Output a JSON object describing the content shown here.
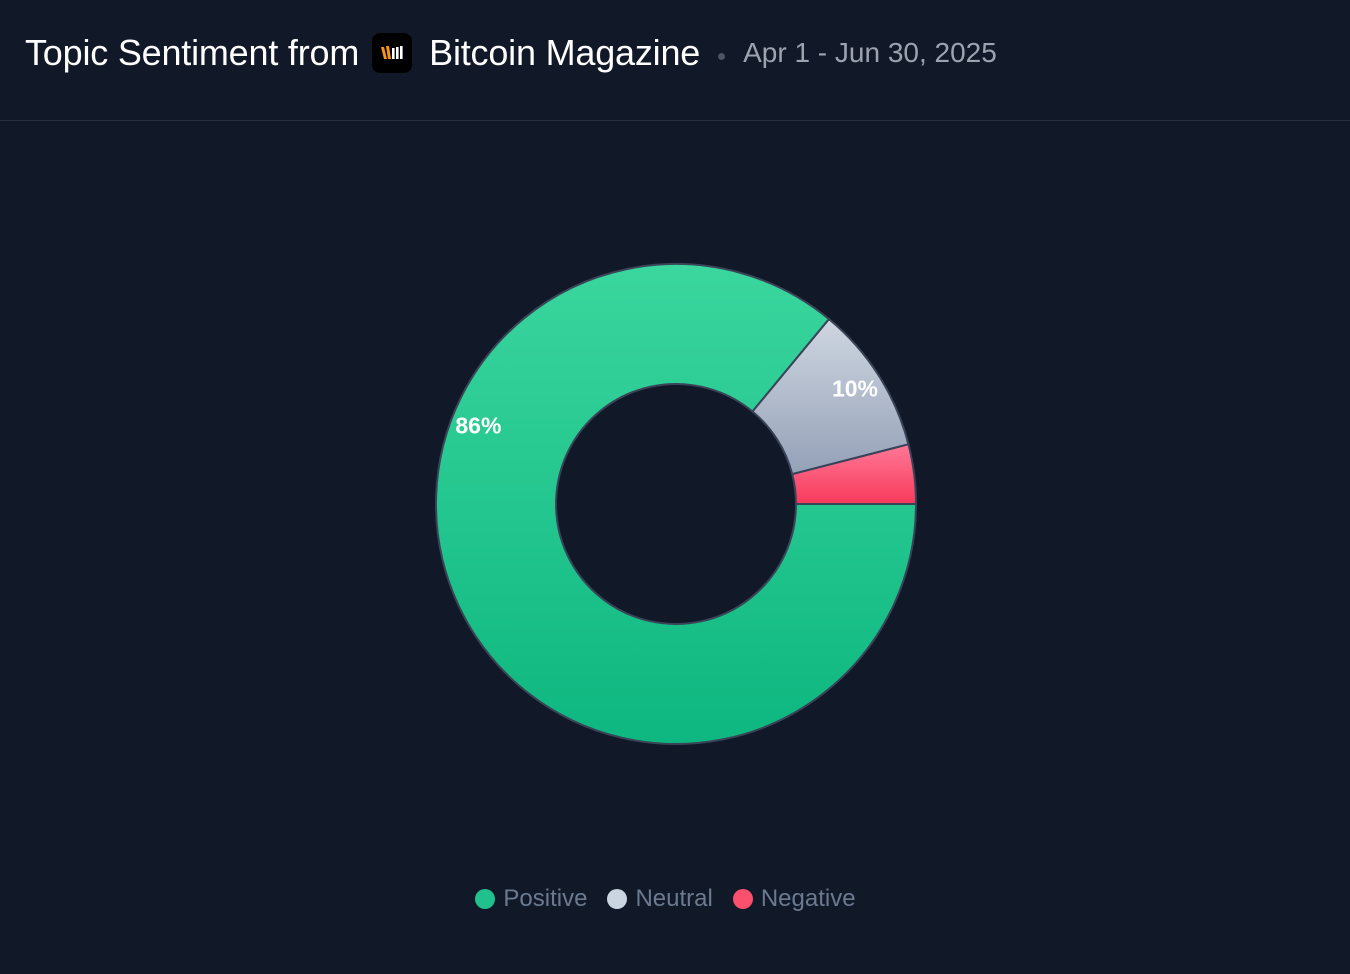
{
  "header": {
    "title": "Topic Sentiment from",
    "source_name": "Bitcoin Magazine",
    "date_range": "Apr 1 - Jun 30, 2025",
    "source_logo_icon": "bitcoin-magazine-logo-icon"
  },
  "chart_data": {
    "type": "pie",
    "variant": "donut",
    "categories": [
      "Positive",
      "Neutral",
      "Negative"
    ],
    "values": [
      86,
      10,
      4
    ],
    "data_labels": [
      "86%",
      "10%",
      ""
    ],
    "colors": [
      "#10b981",
      "#cbd5e1",
      "#fb4f6e"
    ],
    "start_angle": "3 o'clock, clockwise",
    "legend_position": "bottom-center"
  },
  "legend": {
    "items": [
      {
        "label": "Positive",
        "color": "#22c08d"
      },
      {
        "label": "Neutral",
        "color": "#cbd5e1"
      },
      {
        "label": "Negative",
        "color": "#fb4f6e"
      }
    ]
  }
}
